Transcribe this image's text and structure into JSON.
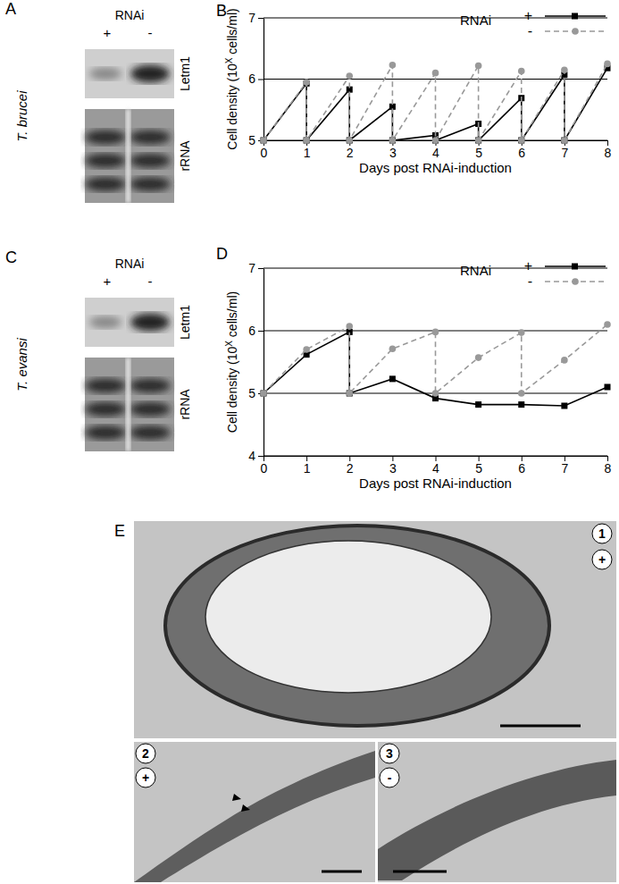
{
  "chart_data": [
    {
      "type": "line",
      "panel": "B",
      "y_label": [
        "Cell density (10",
        "X",
        " cells/ml)"
      ],
      "x_label": "Days post RNAi-induction",
      "legend_title": "RNAi",
      "legend": "top-right",
      "grid": true,
      "xlim": [
        0,
        8
      ],
      "xticks": [
        0,
        1,
        2,
        3,
        4,
        5,
        6,
        7,
        8
      ],
      "ylim": [
        5,
        7
      ],
      "yticks": [
        5,
        6,
        7
      ],
      "series": [
        {
          "name": "+",
          "color": "#000000",
          "marker": "square",
          "line_style": "solid",
          "x": [
            0,
            1,
            1,
            2,
            2,
            3,
            3,
            4,
            4,
            5,
            5,
            6,
            6,
            7,
            7,
            8
          ],
          "values": [
            5,
            5.93,
            5,
            5.83,
            5,
            5.55,
            5,
            5.08,
            5,
            5.27,
            5,
            5.69,
            5,
            6.07,
            5,
            6.18
          ]
        },
        {
          "name": "-",
          "color": "#999999",
          "marker": "circle",
          "line_style": "dashed",
          "x": [
            0,
            1,
            1,
            2,
            2,
            3,
            3,
            4,
            4,
            5,
            5,
            6,
            6,
            7,
            7,
            8
          ],
          "values": [
            5,
            5.95,
            5,
            6.05,
            5,
            6.23,
            5,
            6.1,
            5,
            6.22,
            5,
            6.13,
            5,
            6.15,
            5,
            6.25
          ]
        }
      ]
    },
    {
      "type": "line",
      "panel": "D",
      "y_label": [
        "Cell density (10",
        "X",
        " cells/ml)"
      ],
      "x_label": "Days post RNAi-induction",
      "legend_title": "RNAi",
      "legend": "top-right",
      "grid": true,
      "xlim": [
        0,
        8
      ],
      "xticks": [
        0,
        1,
        2,
        3,
        4,
        5,
        6,
        7,
        8
      ],
      "ylim": [
        4,
        7
      ],
      "yticks": [
        4,
        5,
        6,
        7
      ],
      "series": [
        {
          "name": "+",
          "color": "#000000",
          "marker": "square",
          "line_style": "solid",
          "x": [
            0,
            1,
            2,
            2,
            3,
            4,
            5,
            6,
            7,
            8
          ],
          "values": [
            5,
            5.62,
            5.98,
            5,
            5.23,
            4.92,
            4.82,
            4.82,
            4.8,
            5.1
          ]
        },
        {
          "name": "-",
          "color": "#999999",
          "marker": "circle",
          "line_style": "dashed",
          "x": [
            0,
            1,
            2,
            2,
            3,
            4,
            4,
            5,
            6,
            6,
            7,
            8
          ],
          "values": [
            5,
            5.7,
            6.07,
            5,
            5.71,
            5.98,
            5,
            5.57,
            5.97,
            5,
            5.53,
            6.1
          ]
        }
      ]
    }
  ],
  "panels": {
    "A": {
      "label": "A",
      "species": "T. brucei",
      "header": "RNAi",
      "lanes": [
        "+",
        "-"
      ],
      "rows": [
        "Letm1",
        "rRNA"
      ]
    },
    "C": {
      "label": "C",
      "species": "T. evansi",
      "header": "RNAi",
      "lanes": [
        "+",
        "-"
      ],
      "rows": [
        "Letm1",
        "rRNA"
      ]
    },
    "E": {
      "label": "E",
      "images": [
        {
          "number": "1",
          "condition": "+"
        },
        {
          "number": "2",
          "condition": "+"
        },
        {
          "number": "3",
          "condition": "-"
        }
      ]
    }
  }
}
